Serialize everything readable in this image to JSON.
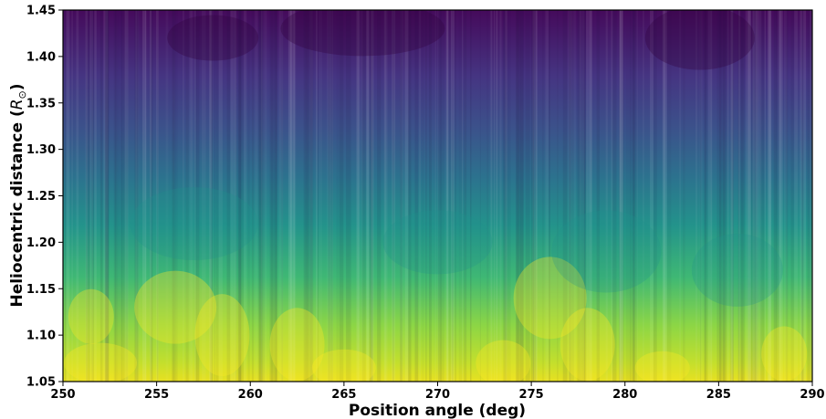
{
  "chart_data": {
    "type": "heatmap",
    "title": "",
    "xlabel": "Position angle (deg)",
    "ylabel_text": "Heliocentric distance (",
    "ylabel_symbol": "R",
    "ylabel_subscript": "⊙",
    "ylabel_close": ")",
    "xlim": [
      250,
      290
    ],
    "ylim": [
      1.05,
      1.45
    ],
    "x_ticks": [
      "250",
      "255",
      "260",
      "265",
      "270",
      "275",
      "280",
      "285",
      "290"
    ],
    "y_ticks": [
      "1.05",
      "1.10",
      "1.15",
      "1.20",
      "1.25",
      "1.30",
      "1.35",
      "1.40",
      "1.45"
    ],
    "colormap": "viridis",
    "colormap_stops": [
      "#440154",
      "#3b528b",
      "#21918c",
      "#5ec962",
      "#fde725"
    ],
    "grid": false,
    "legend": "none",
    "intensity_trend": "bright near 1.05-1.15, fading to dark above 1.30"
  }
}
